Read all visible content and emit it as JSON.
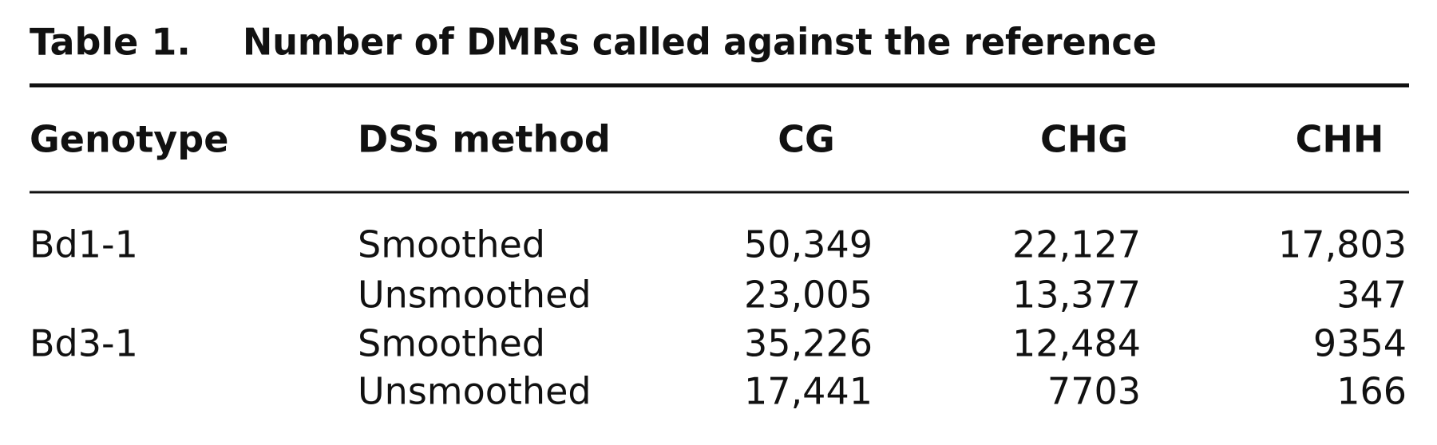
{
  "title": {
    "label": "Table 1.",
    "text": "Number of DMRs called against the reference"
  },
  "table": {
    "header": [
      "Genotype",
      "DSS method",
      "CG",
      "CHG",
      "CHH"
    ],
    "groups": [
      {
        "genotype": "Bd1-1",
        "rows": [
          [
            "Smoothed",
            "50,349",
            "22,127",
            "17,803"
          ],
          [
            "Unsmoothed",
            "23,005",
            "13,377",
            "347"
          ]
        ]
      },
      {
        "genotype": "Bd3-1",
        "rows": [
          [
            "Smoothed",
            "35,226",
            "12,484",
            "9354"
          ],
          [
            "Unsmoothed",
            "17,441",
            "7703",
            "166"
          ]
        ]
      }
    ]
  }
}
